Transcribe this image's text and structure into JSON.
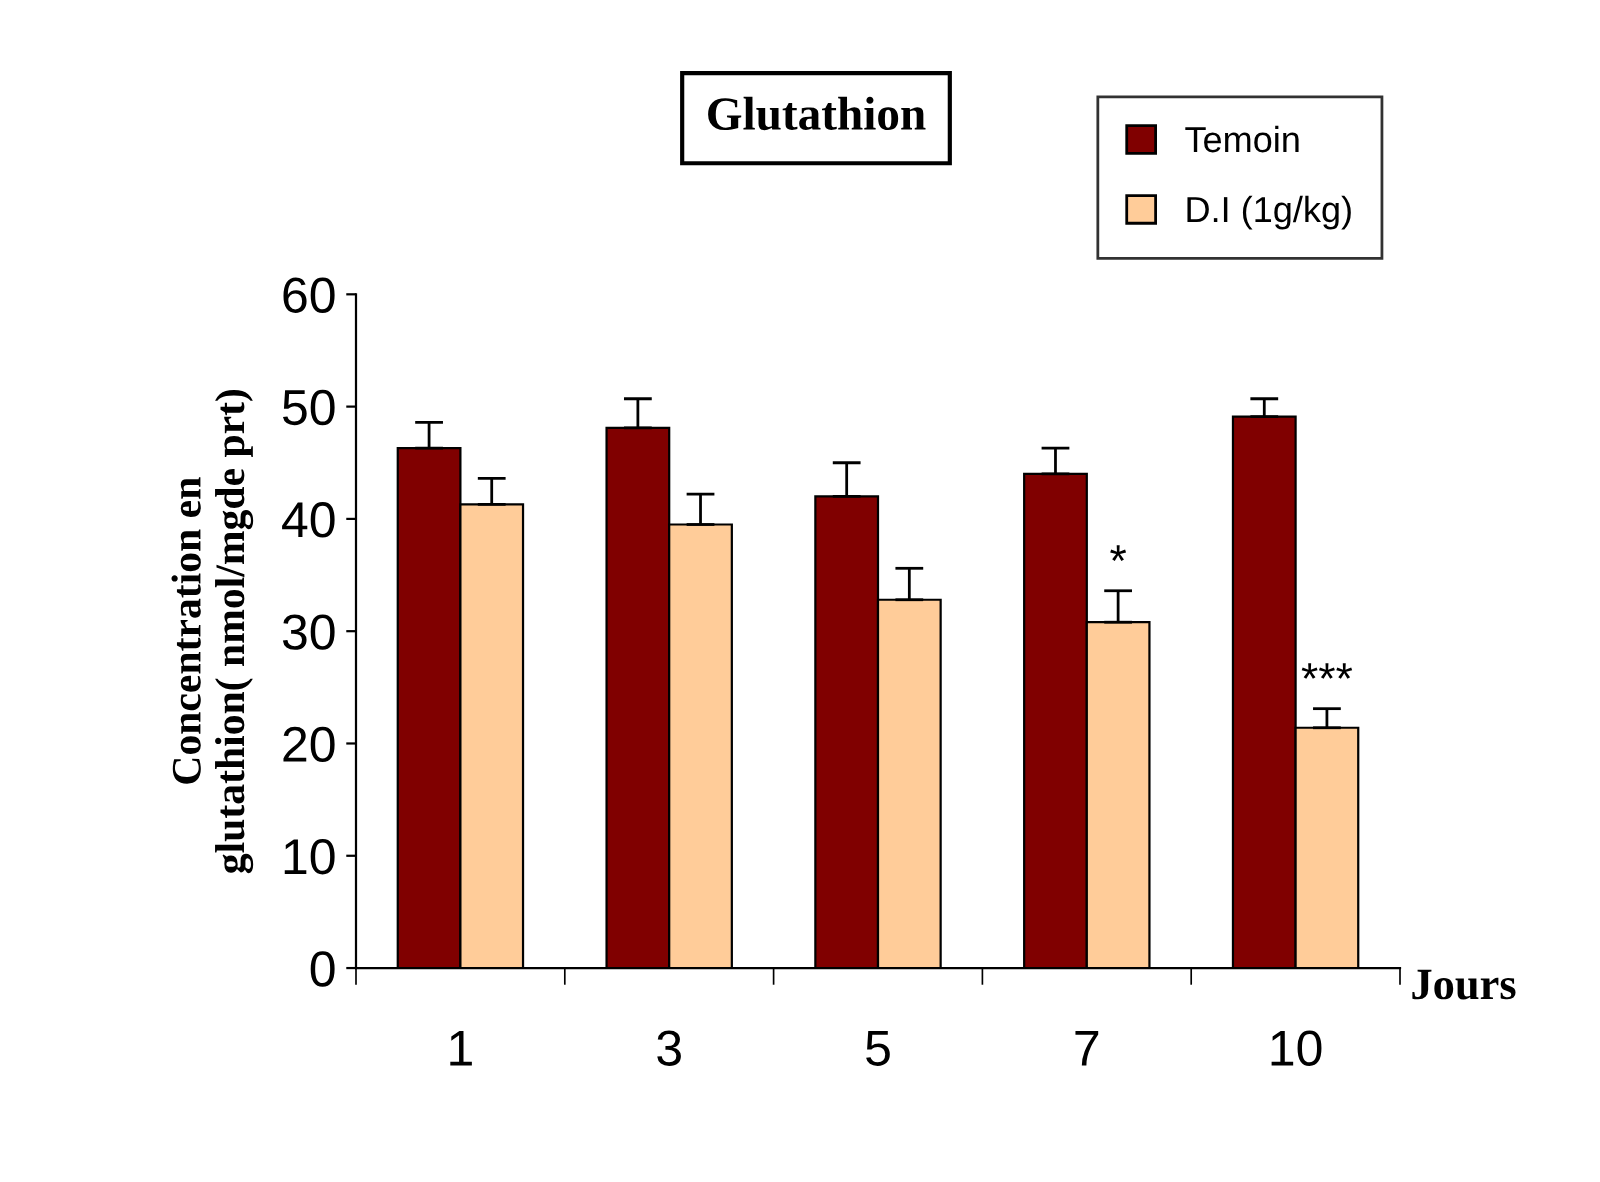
{
  "chart_data": {
    "type": "bar",
    "title": "Glutathion",
    "xlabel": "Jours",
    "ylabel": "Concentration en\nglutathion( nmol/mgde prt)",
    "categories": [
      "1",
      "3",
      "5",
      "7",
      "10"
    ],
    "series": [
      {
        "name": "Temoin",
        "color": "#800000",
        "values": [
          46.3,
          48.1,
          42.0,
          44.0,
          49.1
        ],
        "errors": [
          [
            46.3,
            48.6
          ],
          [
            48.1,
            50.7
          ],
          [
            42.0,
            45.0
          ],
          [
            44.0,
            46.3
          ],
          [
            49.1,
            50.7
          ]
        ]
      },
      {
        "name": "D.I (1g/kg)",
        "color": "#ffcc99",
        "values": [
          41.3,
          39.5,
          32.8,
          30.8,
          21.4
        ],
        "errors": [
          [
            41.3,
            43.6
          ],
          [
            39.5,
            42.2
          ],
          [
            32.8,
            35.6
          ],
          [
            30.8,
            33.6
          ],
          [
            21.4,
            23.1
          ]
        ]
      }
    ],
    "annotations": [
      {
        "text": "*",
        "x": "7",
        "y": 33.6
      },
      {
        "text": "***",
        "x": "10",
        "y": 23.1
      }
    ],
    "ylim": [
      0,
      60
    ],
    "yticks": [
      0,
      10,
      20,
      30,
      40,
      50,
      60
    ],
    "grid": false,
    "legend": "top right"
  }
}
